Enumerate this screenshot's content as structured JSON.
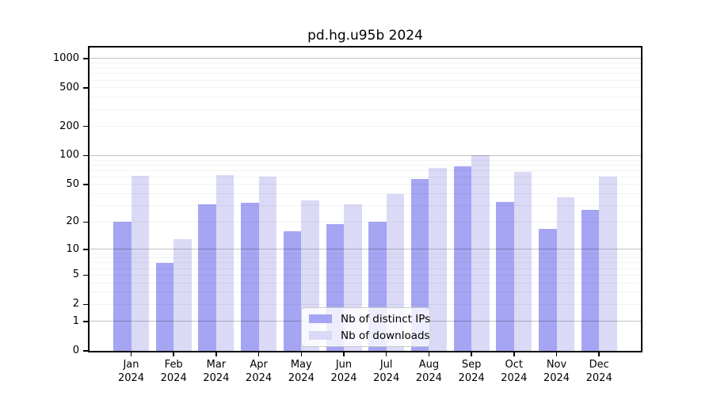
{
  "title": "pd.hg.u95b 2024",
  "colors": {
    "ips_bar": "#a5a5f3",
    "downloads_bar": "#dadaf7",
    "axis": "#000000",
    "grid_major": "rgba(0,0,0,0.24)",
    "grid_minor": "rgba(0,0,0,0.05)",
    "legend_border": "#cccccc",
    "legend_background": "rgba(255,255,255,0.8)"
  },
  "chart_data": {
    "type": "bar",
    "title": "pd.hg.u95b 2024",
    "categories": [
      "Jan 2024",
      "Feb 2024",
      "Mar 2024",
      "Apr 2024",
      "May 2024",
      "Jun 2024",
      "Jul 2024",
      "Aug 2024",
      "Sep 2024",
      "Oct 2024",
      "Nov 2024",
      "Dec 2024"
    ],
    "x_tick_months": [
      "Jan",
      "Feb",
      "Mar",
      "Apr",
      "May",
      "Jun",
      "Jul",
      "Aug",
      "Sep",
      "Oct",
      "Nov",
      "Dec"
    ],
    "x_tick_year": "2024",
    "series": [
      {
        "key": "distinct-ips",
        "name": "Nb of distinct IPs",
        "color": "#a5a5f3",
        "values": [
          20,
          7,
          31,
          32,
          16,
          19,
          20,
          57,
          78,
          33,
          17,
          27
        ]
      },
      {
        "key": "downloads",
        "name": "Nb of downloads",
        "color": "#dadaf7",
        "values": [
          62,
          13,
          63,
          60,
          34,
          31,
          40,
          75,
          100,
          68,
          37,
          60
        ]
      }
    ],
    "yscale": "log10(1+y)",
    "yticks": [
      0,
      1,
      2,
      5,
      10,
      20,
      50,
      100,
      200,
      500,
      1000
    ],
    "ylim": [
      0,
      1300
    ],
    "grid": true,
    "legend_position": "lower center"
  }
}
